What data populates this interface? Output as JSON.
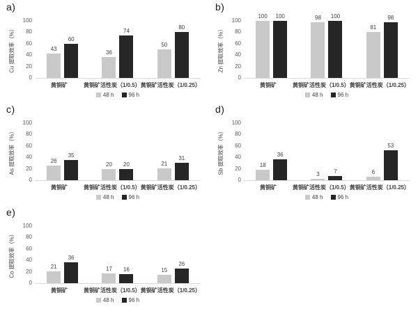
{
  "page": {
    "background": "#ffffff",
    "description_colors": {
      "bar_48h": "#c9c9c9",
      "bar_96h": "#262626",
      "axis_line": "#d9d9d9",
      "tick_text": "#595959",
      "label_text": "#404040",
      "panel_letter_text": "#1a1a1a"
    }
  },
  "chart_data": [
    {
      "type": "bar",
      "panel_label": "a)",
      "title": "",
      "xlabel": "",
      "ylabel": "Cu 提取效率（%）",
      "ylim": [
        0,
        100
      ],
      "yticks": [
        0,
        20,
        40,
        60,
        80,
        100
      ],
      "grid": false,
      "legend_position": "bottom",
      "categories": [
        "黄铜矿",
        "黄铜矿活性炭（1/0.5）",
        "黄铜矿活性炭（1/0.25）"
      ],
      "series": [
        {
          "name": "48 h",
          "color": "#c9c9c9",
          "values": [
            43,
            36,
            50
          ]
        },
        {
          "name": "96 h",
          "color": "#262626",
          "values": [
            60,
            74,
            80
          ]
        }
      ]
    },
    {
      "type": "bar",
      "panel_label": "b)",
      "title": "",
      "xlabel": "",
      "ylabel": "Zn 提取效率（%）",
      "ylim": [
        0,
        100
      ],
      "yticks": [
        0,
        20,
        40,
        60,
        80,
        100
      ],
      "grid": false,
      "legend_position": "bottom",
      "categories": [
        "黄铜矿",
        "黄铜矿活性炭（1/0.5）",
        "黄铜矿活性炭（1/0.25）"
      ],
      "series": [
        {
          "name": "48 h",
          "color": "#c9c9c9",
          "values": [
            100,
            98,
            81
          ]
        },
        {
          "name": "96 h",
          "color": "#262626",
          "values": [
            100,
            100,
            98
          ]
        }
      ]
    },
    {
      "type": "bar",
      "panel_label": "c)",
      "title": "",
      "xlabel": "",
      "ylabel": "As 提取效率（%）",
      "ylim": [
        0,
        100
      ],
      "yticks": [
        0,
        20,
        40,
        60,
        80,
        100
      ],
      "grid": false,
      "legend_position": "bottom",
      "categories": [
        "黄铜矿",
        "黄铜矿活性炭（1/0.5）",
        "黄铜矿活性炭（1/0.25）"
      ],
      "series": [
        {
          "name": "48 h",
          "color": "#c9c9c9",
          "values": [
            26,
            20,
            21
          ]
        },
        {
          "name": "96 h",
          "color": "#262626",
          "values": [
            35,
            20,
            31
          ]
        }
      ]
    },
    {
      "type": "bar",
      "panel_label": "d)",
      "title": "",
      "xlabel": "",
      "ylabel": "Sb 提取效率（%）",
      "ylim": [
        0,
        100
      ],
      "yticks": [
        0,
        20,
        40,
        60,
        80,
        100
      ],
      "grid": false,
      "legend_position": "bottom",
      "categories": [
        "黄铜矿",
        "黄铜矿活性炭（1/0.5）",
        "黄铜矿活性炭（1/0.25）"
      ],
      "series": [
        {
          "name": "48 h",
          "color": "#c9c9c9",
          "values": [
            18,
            3,
            6
          ]
        },
        {
          "name": "96 h",
          "color": "#262626",
          "values": [
            36,
            7,
            53
          ]
        }
      ]
    },
    {
      "type": "bar",
      "panel_label": "e)",
      "title": "",
      "xlabel": "",
      "ylabel": "Co 提取效率（%）",
      "ylim": [
        0,
        100
      ],
      "yticks": [
        0,
        20,
        40,
        60,
        80,
        100
      ],
      "grid": false,
      "legend_position": "bottom",
      "categories": [
        "黄铜矿",
        "黄铜矿活性炭（1/0.5）",
        "黄铜矿活性炭（1/0.25）"
      ],
      "series": [
        {
          "name": "48 h",
          "color": "#c9c9c9",
          "values": [
            21,
            17,
            15
          ]
        },
        {
          "name": "96 h",
          "color": "#262626",
          "values": [
            36,
            16,
            26
          ]
        }
      ]
    }
  ]
}
